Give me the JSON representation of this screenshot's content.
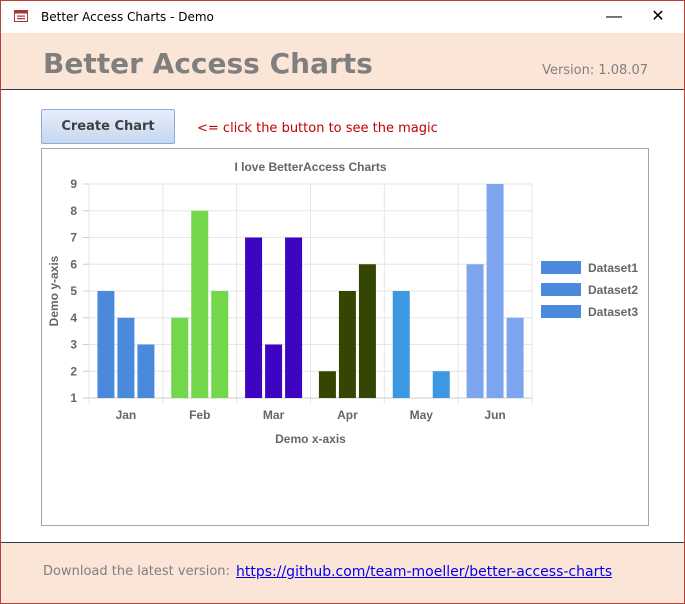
{
  "window": {
    "title": "Better Access Charts - Demo",
    "minimize_glyph": "—",
    "close_glyph": "✕"
  },
  "header": {
    "title": "Better Access Charts",
    "version": "Version: 1.08.07"
  },
  "main": {
    "create_button_label": "Create Chart",
    "hint": "<= click the button to see the magic"
  },
  "footer": {
    "download_label": "Download the latest version:",
    "link_text": "https://github.com/team-moeller/better-access-charts"
  },
  "colors": {
    "accent_background": "#fbe5d6",
    "window_border": "#b9403d",
    "hint_text": "#c00000",
    "link": "#0000ee"
  },
  "chart_data": {
    "type": "bar",
    "title": "I love BetterAccess Charts",
    "xlabel": "Demo x-axis",
    "ylabel": "Demo y-axis",
    "categories": [
      "Jan",
      "Feb",
      "Mar",
      "Apr",
      "May",
      "Jun"
    ],
    "ylim": [
      1,
      9
    ],
    "yticks": [
      1,
      2,
      3,
      4,
      5,
      6,
      7,
      8,
      9
    ],
    "grid": true,
    "legend_position": "right",
    "series": [
      {
        "name": "Dataset1",
        "values": [
          5,
          4,
          7,
          2,
          5,
          6
        ]
      },
      {
        "name": "Dataset2",
        "values": [
          4,
          8,
          3,
          5,
          1,
          9
        ]
      },
      {
        "name": "Dataset3",
        "values": [
          3,
          5,
          7,
          6,
          2,
          4
        ]
      }
    ],
    "legend_color": "#4a89dc",
    "category_colors": [
      "#4a89dc",
      "#72d74a",
      "#3d05c2",
      "#344602",
      "#3c98e2",
      "#7da5ef"
    ]
  }
}
